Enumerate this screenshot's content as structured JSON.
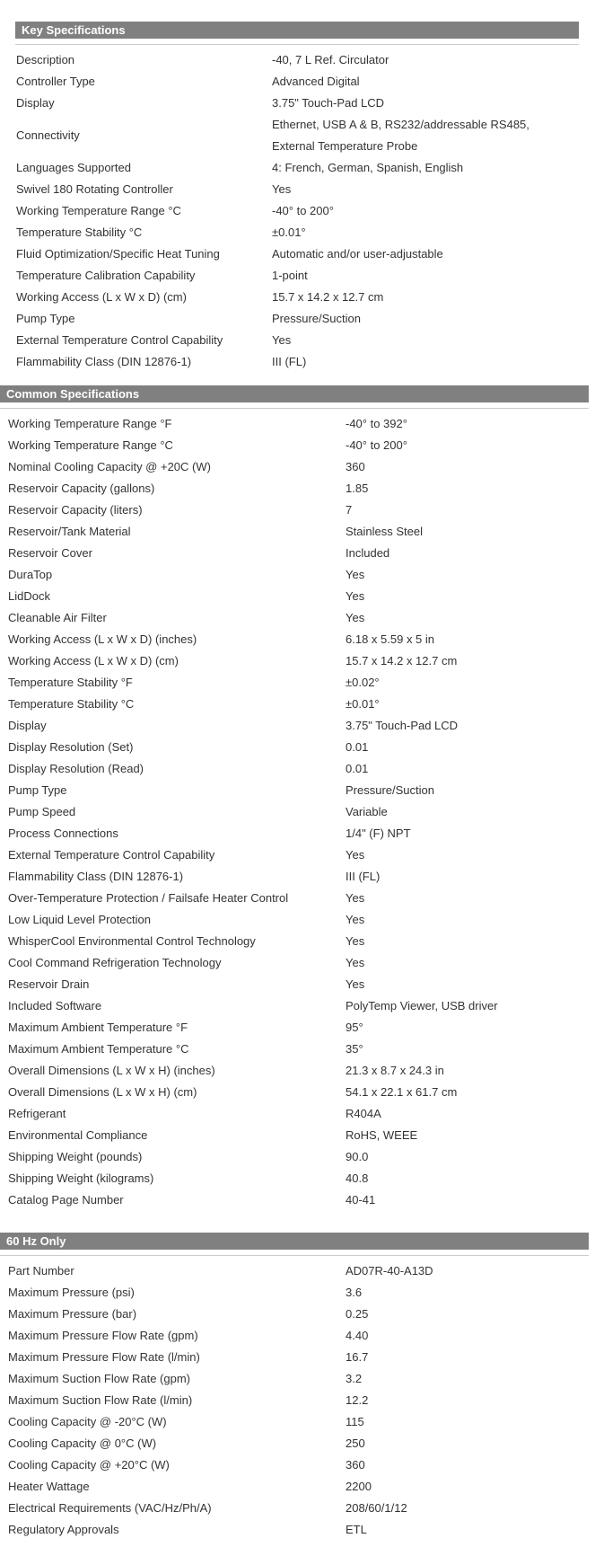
{
  "styles": {
    "header_bg": "#808080",
    "header_text_color": "#ffffff",
    "divider_color": "#cccccc",
    "text_color": "#333333",
    "page_background": "#ffffff"
  },
  "sections": [
    {
      "title": "Key Specifications",
      "rows": [
        {
          "label": "Description",
          "value": "-40, 7 L Ref. Circulator"
        },
        {
          "label": "Controller Type",
          "value": "Advanced Digital"
        },
        {
          "label": "Display",
          "value": "3.75\" Touch-Pad LCD"
        },
        {
          "label": "Connectivity",
          "value": "Ethernet, USB A & B, RS232/addressable RS485,\nExternal Temperature Probe"
        },
        {
          "label": "Languages Supported",
          "value": "4: French, German, Spanish, English"
        },
        {
          "label": "Swivel 180 Rotating Controller",
          "value": "Yes"
        },
        {
          "label": "Working Temperature Range °C",
          "value": "-40° to 200°"
        },
        {
          "label": "Temperature Stability °C",
          "value": "±0.01°"
        },
        {
          "label": "Fluid Optimization/Specific Heat Tuning",
          "value": "Automatic and/or user-adjustable"
        },
        {
          "label": "Temperature Calibration Capability",
          "value": "1-point"
        },
        {
          "label": "Working Access (L x W x D) (cm)",
          "value": "15.7 x 14.2 x 12.7 cm"
        },
        {
          "label": "Pump Type",
          "value": "Pressure/Suction"
        },
        {
          "label": "External Temperature Control Capability",
          "value": "Yes"
        },
        {
          "label": "Flammability Class (DIN 12876-1)",
          "value": "III (FL)"
        }
      ]
    },
    {
      "title": "Common Specifications",
      "rows": [
        {
          "label": "Working Temperature Range °F",
          "value": "-40° to 392°"
        },
        {
          "label": "Working Temperature Range °C",
          "value": "-40° to 200°"
        },
        {
          "label": "Nominal Cooling Capacity @ +20C (W)",
          "value": "360"
        },
        {
          "label": "Reservoir Capacity (gallons)",
          "value": "1.85"
        },
        {
          "label": "Reservoir Capacity (liters)",
          "value": "7"
        },
        {
          "label": "Reservoir/Tank Material",
          "value": "Stainless Steel"
        },
        {
          "label": "Reservoir Cover",
          "value": "Included"
        },
        {
          "label": "DuraTop",
          "value": "Yes"
        },
        {
          "label": "LidDock",
          "value": "Yes"
        },
        {
          "label": "Cleanable Air Filter",
          "value": "Yes"
        },
        {
          "label": "Working Access (L x W x D) (inches)",
          "value": "6.18 x 5.59 x 5 in"
        },
        {
          "label": "Working Access (L x W x D) (cm)",
          "value": "15.7 x 14.2 x 12.7 cm"
        },
        {
          "label": "Temperature Stability °F",
          "value": "±0.02°"
        },
        {
          "label": "Temperature Stability °C",
          "value": "±0.01°"
        },
        {
          "label": "Display",
          "value": "3.75\" Touch-Pad LCD"
        },
        {
          "label": "Display Resolution (Set)",
          "value": "0.01"
        },
        {
          "label": "Display Resolution (Read)",
          "value": "0.01"
        },
        {
          "label": "Pump Type",
          "value": "Pressure/Suction"
        },
        {
          "label": "Pump Speed",
          "value": "Variable"
        },
        {
          "label": "Process Connections",
          "value": "1/4\" (F) NPT"
        },
        {
          "label": "External Temperature Control Capability",
          "value": "Yes"
        },
        {
          "label": "Flammability Class (DIN 12876-1)",
          "value": "III (FL)"
        },
        {
          "label": "Over-Temperature Protection / Failsafe Heater Control",
          "value": "Yes"
        },
        {
          "label": "Low Liquid Level Protection",
          "value": "Yes"
        },
        {
          "label": "WhisperCool Environmental Control Technology",
          "value": "Yes"
        },
        {
          "label": "Cool Command Refrigeration Technology",
          "value": "Yes"
        },
        {
          "label": "Reservoir Drain",
          "value": "Yes"
        },
        {
          "label": "Included Software",
          "value": "PolyTemp Viewer, USB driver"
        },
        {
          "label": "Maximum Ambient Temperature °F",
          "value": "95°"
        },
        {
          "label": "Maximum Ambient Temperature °C",
          "value": "35°"
        },
        {
          "label": "Overall Dimensions (L x W x H) (inches)",
          "value": "21.3 x 8.7 x 24.3 in"
        },
        {
          "label": "Overall Dimensions (L x W x H) (cm)",
          "value": "54.1 x 22.1 x 61.7 cm"
        },
        {
          "label": "Refrigerant",
          "value": "R404A"
        },
        {
          "label": "Environmental Compliance",
          "value": "RoHS, WEEE"
        },
        {
          "label": "Shipping Weight (pounds)",
          "value": "90.0"
        },
        {
          "label": "Shipping Weight (kilograms)",
          "value": "40.8"
        },
        {
          "label": "Catalog Page Number",
          "value": "40-41"
        }
      ]
    },
    {
      "title": "60 Hz Only",
      "rows": [
        {
          "label": "Part Number",
          "value": "AD07R-40-A13D"
        },
        {
          "label": "Maximum Pressure (psi)",
          "value": "3.6"
        },
        {
          "label": "Maximum Pressure (bar)",
          "value": "0.25"
        },
        {
          "label": "Maximum Pressure Flow Rate (gpm)",
          "value": "4.40"
        },
        {
          "label": "Maximum Pressure Flow Rate (l/min)",
          "value": "16.7"
        },
        {
          "label": "Maximum Suction Flow Rate (gpm)",
          "value": "3.2"
        },
        {
          "label": "Maximum Suction Flow Rate (l/min)",
          "value": "12.2"
        },
        {
          "label": "Cooling Capacity @ -20°C (W)",
          "value": "115"
        },
        {
          "label": "Cooling Capacity @ 0°C (W)",
          "value": "250"
        },
        {
          "label": "Cooling Capacity @ +20°C (W)",
          "value": "360"
        },
        {
          "label": "Heater Wattage",
          "value": "2200"
        },
        {
          "label": "Electrical Requirements (VAC/Hz/Ph/A)",
          "value": "208/60/1/12"
        },
        {
          "label": "Regulatory Approvals",
          "value": "ETL"
        }
      ]
    }
  ]
}
